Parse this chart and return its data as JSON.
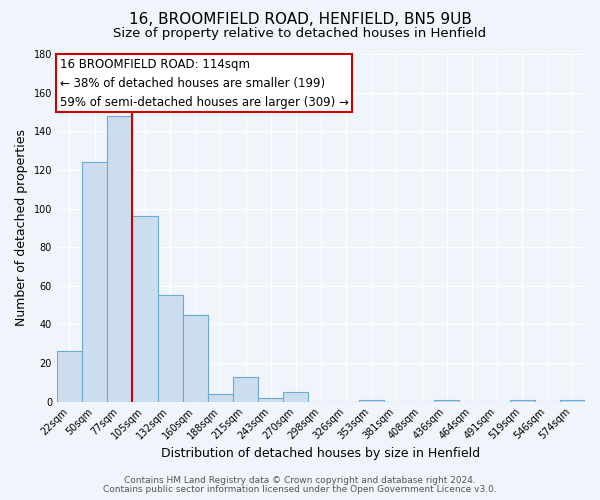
{
  "title": "16, BROOMFIELD ROAD, HENFIELD, BN5 9UB",
  "subtitle": "Size of property relative to detached houses in Henfield",
  "xlabel": "Distribution of detached houses by size in Henfield",
  "ylabel": "Number of detached properties",
  "bin_labels": [
    "22sqm",
    "50sqm",
    "77sqm",
    "105sqm",
    "132sqm",
    "160sqm",
    "188sqm",
    "215sqm",
    "243sqm",
    "270sqm",
    "298sqm",
    "326sqm",
    "353sqm",
    "381sqm",
    "408sqm",
    "436sqm",
    "464sqm",
    "491sqm",
    "519sqm",
    "546sqm",
    "574sqm"
  ],
  "bar_heights": [
    26,
    124,
    148,
    96,
    55,
    45,
    4,
    13,
    2,
    5,
    0,
    0,
    1,
    0,
    0,
    1,
    0,
    0,
    1,
    0,
    1
  ],
  "bar_color": "#ccddf0",
  "bar_edge_color": "#6aaad4",
  "vline_color": "#cc0000",
  "vline_x": 2.5,
  "annotation_line1": "16 BROOMFIELD ROAD: 114sqm",
  "annotation_line2": "← 38% of detached houses are smaller (199)",
  "annotation_line3": "59% of semi-detached houses are larger (309) →",
  "annotation_box_color": "#ffffff",
  "annotation_box_edge": "#cc0000",
  "ylim": [
    0,
    180
  ],
  "yticks": [
    0,
    20,
    40,
    60,
    80,
    100,
    120,
    140,
    160,
    180
  ],
  "footer_line1": "Contains HM Land Registry data © Crown copyright and database right 2024.",
  "footer_line2": "Contains public sector information licensed under the Open Government Licence v3.0.",
  "bg_color": "#f0f4fb",
  "plot_bg_color": "#f0f4fb",
  "grid_color": "#ffffff",
  "title_fontsize": 11,
  "subtitle_fontsize": 9.5,
  "label_fontsize": 9,
  "tick_fontsize": 7,
  "footer_fontsize": 6.5,
  "annotation_fontsize": 8.5
}
